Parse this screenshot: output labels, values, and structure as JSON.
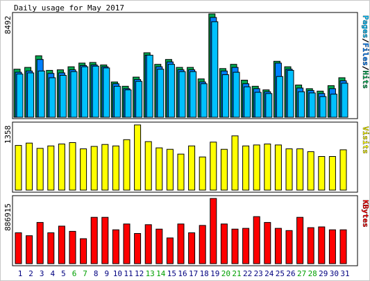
{
  "title": "Daily usage for May 2017",
  "colors": {
    "background": "#ffffff",
    "panel_outer": "#c8c8c8",
    "hits": "#00a650",
    "files": "#0080ff",
    "pages": "#00c0ff",
    "visits": "#ffff00",
    "kbytes": "#ff0000",
    "weekday_label": "#000080",
    "weekend_label": "#00a000"
  },
  "chart_data": [
    {
      "type": "bar",
      "panel": "hits-files-pages",
      "max_label": "8492",
      "side_label_parts": [
        {
          "text": "Pages",
          "color": "#00c0ff"
        },
        {
          "text": "/",
          "color": "#000000"
        },
        {
          "text": "Files",
          "color": "#0080ff"
        },
        {
          "text": "/",
          "color": "#000000"
        },
        {
          "text": "Hits",
          "color": "#00a650"
        }
      ],
      "ylim": [
        0,
        8492
      ],
      "categories": [
        "1",
        "2",
        "3",
        "4",
        "5",
        "6",
        "7",
        "8",
        "9",
        "10",
        "11",
        "12",
        "13",
        "14",
        "15",
        "16",
        "17",
        "18",
        "19",
        "20",
        "21",
        "22",
        "23",
        "24",
        "25",
        "26",
        "27",
        "28",
        "29",
        "30",
        "31"
      ],
      "weekend": [
        6,
        7,
        13,
        14,
        20,
        21,
        27,
        28
      ],
      "series": [
        {
          "name": "Hits",
          "color": "#00a650",
          "values": [
            3950,
            4100,
            5050,
            3850,
            3900,
            4150,
            4450,
            4500,
            4300,
            2900,
            2550,
            3300,
            5300,
            4350,
            4750,
            4100,
            4100,
            3150,
            8492,
            4000,
            4350,
            3050,
            2550,
            2250,
            4600,
            4150,
            2650,
            2350,
            2150,
            2600,
            3250
          ]
        },
        {
          "name": "Files",
          "color": "#0080ff",
          "values": [
            3700,
            3800,
            4750,
            3600,
            3650,
            3900,
            4250,
            4300,
            4150,
            2750,
            2350,
            3100,
            5100,
            4150,
            4550,
            3900,
            3900,
            2900,
            8200,
            3800,
            4100,
            2750,
            2350,
            2100,
            4450,
            3950,
            2400,
            2200,
            1950,
            2350,
            3000
          ]
        },
        {
          "name": "Pages",
          "color": "#00c0ff",
          "values": [
            3550,
            3650,
            3800,
            3250,
            3450,
            3750,
            4150,
            4200,
            4050,
            2550,
            2250,
            2950,
            5100,
            3950,
            4350,
            3750,
            3750,
            2750,
            7850,
            3500,
            3700,
            2500,
            2050,
            1950,
            3350,
            3850,
            2100,
            2000,
            1700,
            1900,
            2800
          ]
        }
      ]
    },
    {
      "type": "bar",
      "panel": "visits",
      "max_label": "1358",
      "side_label_parts": [
        {
          "text": "Visits",
          "color": "#ffff00"
        }
      ],
      "ylim": [
        0,
        1358
      ],
      "categories": [
        "1",
        "2",
        "3",
        "4",
        "5",
        "6",
        "7",
        "8",
        "9",
        "10",
        "11",
        "12",
        "13",
        "14",
        "15",
        "16",
        "17",
        "18",
        "19",
        "20",
        "21",
        "22",
        "23",
        "24",
        "25",
        "26",
        "27",
        "28",
        "29",
        "30",
        "31"
      ],
      "series": [
        {
          "name": "Visits",
          "color": "#ffff00",
          "values": [
            930,
            980,
            870,
            920,
            960,
            990,
            860,
            910,
            950,
            920,
            1050,
            1358,
            1010,
            880,
            850,
            750,
            920,
            690,
            1000,
            850,
            1130,
            920,
            940,
            960,
            940,
            860,
            860,
            800,
            700,
            700,
            840
          ]
        }
      ]
    },
    {
      "type": "bar",
      "panel": "kbytes",
      "max_label": "886915",
      "side_label_parts": [
        {
          "text": "KBytes",
          "color": "#ff0000"
        }
      ],
      "ylim": [
        0,
        886915
      ],
      "categories": [
        "1",
        "2",
        "3",
        "4",
        "5",
        "6",
        "7",
        "8",
        "9",
        "10",
        "11",
        "12",
        "13",
        "14",
        "15",
        "16",
        "17",
        "18",
        "19",
        "20",
        "21",
        "22",
        "23",
        "24",
        "25",
        "26",
        "27",
        "28",
        "29",
        "30",
        "31"
      ],
      "series": [
        {
          "name": "KBytes",
          "color": "#ff0000",
          "values": [
            420000,
            380000,
            560000,
            420000,
            510000,
            440000,
            340000,
            630000,
            630000,
            460000,
            540000,
            410000,
            530000,
            470000,
            350000,
            540000,
            420000,
            520000,
            886915,
            540000,
            470000,
            480000,
            640000,
            560000,
            480000,
            450000,
            630000,
            490000,
            500000,
            460000,
            460000
          ]
        }
      ]
    }
  ]
}
